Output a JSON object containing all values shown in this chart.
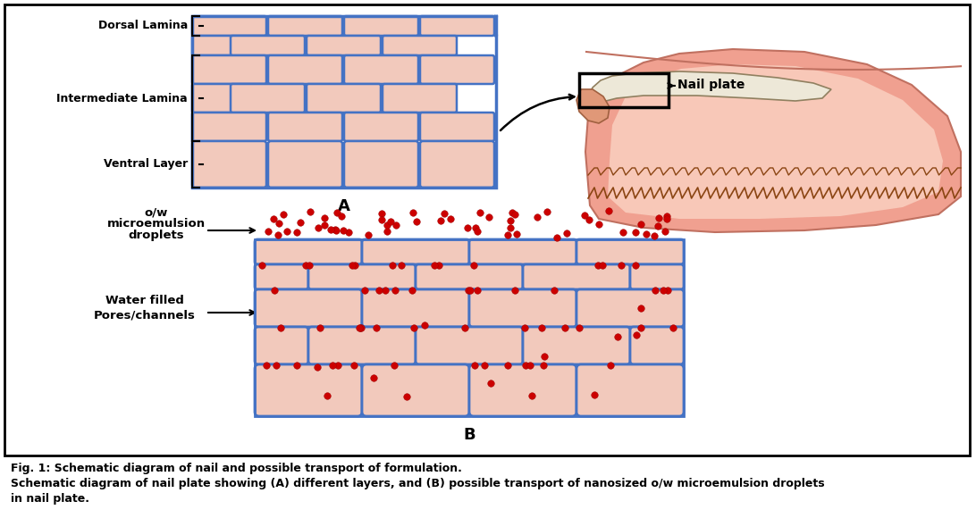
{
  "fig_width": 10.92,
  "fig_height": 5.8,
  "bg_color": "#ffffff",
  "brick_fill": "#f2c9bc",
  "brick_edge": "#4472c4",
  "brick_lw": 1.8,
  "droplet_color": "#cc0000",
  "title1": "Fig. 1: Schematic diagram of nail and possible transport of formulation.",
  "title2": "Schematic diagram of nail plate showing (A) different layers, and (B) possible transport of nanosized o/w microemulsion droplets",
  "title3": "in nail plate."
}
